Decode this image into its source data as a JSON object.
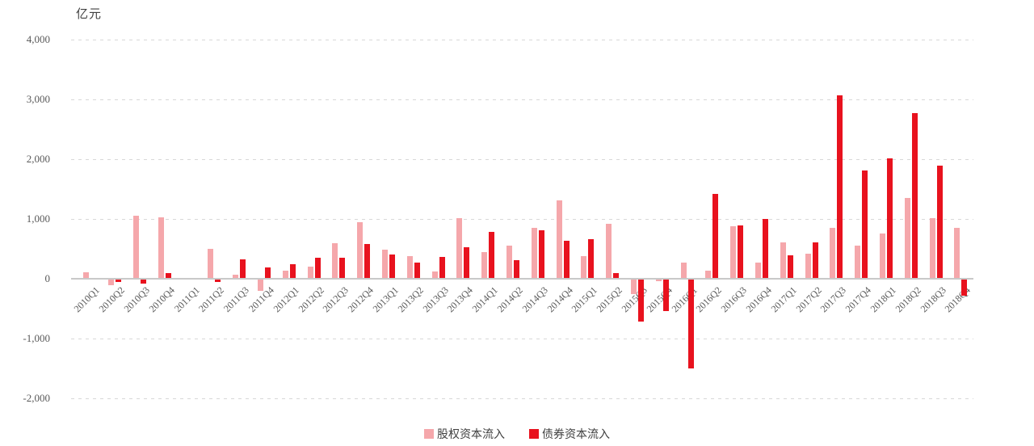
{
  "chart_data": {
    "type": "bar",
    "title": "亿元",
    "categories": [
      "2010Q1",
      "2010Q2",
      "2010Q3",
      "2010Q4",
      "2011Q1",
      "2011Q2",
      "2011Q3",
      "2011Q4",
      "2012Q1",
      "2012Q2",
      "2012Q3",
      "2012Q4",
      "2013Q1",
      "2013Q2",
      "2013Q3",
      "2013Q4",
      "2014Q1",
      "2014Q2",
      "2014Q3",
      "2014Q4",
      "2015Q1",
      "2015Q2",
      "2015Q3",
      "2015Q4",
      "2016Q1",
      "2016Q2",
      "2016Q3",
      "2016Q4",
      "2017Q1",
      "2017Q2",
      "2017Q3",
      "2017Q4",
      "2018Q1",
      "2018Q2",
      "2018Q3",
      "2018Q4"
    ],
    "series": [
      {
        "name": "股权资本流入",
        "color": "#F5A7AB",
        "values": [
          110,
          -100,
          1050,
          1030,
          15,
          495,
          65,
          -195,
          130,
          205,
          600,
          945,
          490,
          375,
          115,
          1020,
          450,
          550,
          850,
          1310,
          380,
          915,
          -240,
          -25,
          265,
          130,
          885,
          270,
          610,
          415,
          855,
          550,
          755,
          1350,
          1020,
          855
        ]
      },
      {
        "name": "债券资本流入",
        "color": "#E8121E",
        "values": [
          0,
          -45,
          -65,
          90,
          0,
          -35,
          320,
          185,
          250,
          350,
          355,
          580,
          400,
          275,
          360,
          528,
          790,
          305,
          815,
          630,
          660,
          90,
          -700,
          -525,
          -1480,
          1420,
          890,
          1000,
          390,
          605,
          3070,
          1810,
          2010,
          2770,
          1895,
          -270
        ]
      }
    ],
    "ylim": [
      -2000,
      4000
    ],
    "yticks": [
      4000,
      3000,
      2000,
      1000,
      0,
      -1000,
      -2000
    ],
    "ytick_labels": [
      "4,000",
      "3,000",
      "2,000",
      "1,000",
      "0",
      "-1,000",
      "-2,000"
    ],
    "grid": "horizontal-dashed",
    "legend_position": "bottom-center",
    "colors": {
      "grid": "#D8D8D8",
      "zero_line": "#C9C9C9",
      "axis_text": "#595959",
      "title_text": "#404040"
    }
  }
}
